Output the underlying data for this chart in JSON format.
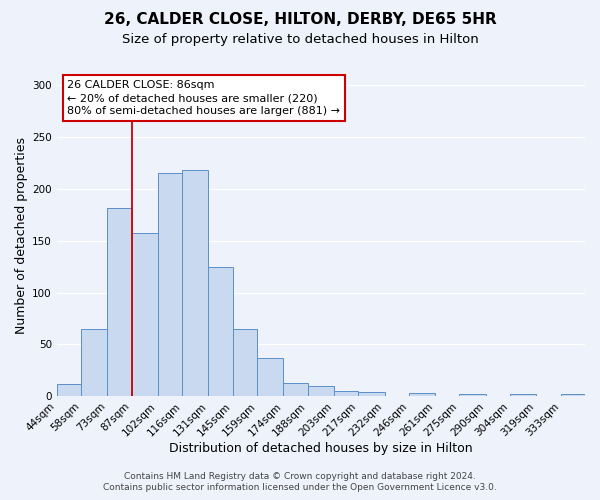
{
  "title": "26, CALDER CLOSE, HILTON, DERBY, DE65 5HR",
  "subtitle": "Size of property relative to detached houses in Hilton",
  "xlabel": "Distribution of detached houses by size in Hilton",
  "ylabel": "Number of detached properties",
  "bin_labels": [
    "44sqm",
    "58sqm",
    "73sqm",
    "87sqm",
    "102sqm",
    "116sqm",
    "131sqm",
    "145sqm",
    "159sqm",
    "174sqm",
    "188sqm",
    "203sqm",
    "217sqm",
    "232sqm",
    "246sqm",
    "261sqm",
    "275sqm",
    "290sqm",
    "304sqm",
    "319sqm",
    "333sqm"
  ],
  "bin_edges": [
    44,
    58,
    73,
    87,
    102,
    116,
    131,
    145,
    159,
    174,
    188,
    203,
    217,
    232,
    246,
    261,
    275,
    290,
    304,
    319,
    333
  ],
  "bar_heights": [
    12,
    65,
    182,
    157,
    215,
    218,
    125,
    65,
    37,
    13,
    10,
    5,
    4,
    0,
    3,
    0,
    2,
    0,
    2,
    0,
    2
  ],
  "bar_color": "#c9d9f0",
  "bar_edge_color": "#5b8fc9",
  "red_line_x": 87,
  "ylim": [
    0,
    310
  ],
  "yticks": [
    0,
    50,
    100,
    150,
    200,
    250,
    300
  ],
  "annotation_title": "26 CALDER CLOSE: 86sqm",
  "annotation_line1": "← 20% of detached houses are smaller (220)",
  "annotation_line2": "80% of semi-detached houses are larger (881) →",
  "annotation_box_facecolor": "#ffffff",
  "annotation_box_edgecolor": "#cc0000",
  "footer_line1": "Contains HM Land Registry data © Crown copyright and database right 2024.",
  "footer_line2": "Contains public sector information licensed under the Open Government Licence v3.0.",
  "background_color": "#eef2fb",
  "grid_color": "#ffffff",
  "title_fontsize": 11,
  "subtitle_fontsize": 9.5,
  "axis_label_fontsize": 9,
  "tick_fontsize": 7.5,
  "annotation_fontsize": 8,
  "footer_fontsize": 6.5
}
